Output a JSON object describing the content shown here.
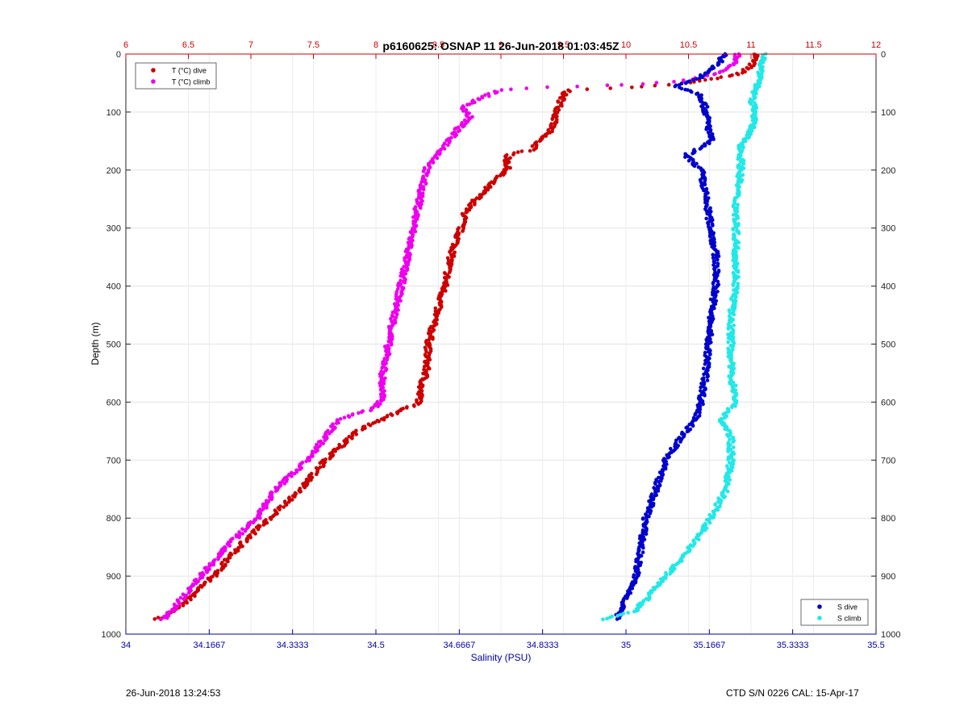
{
  "chart_data": {
    "type": "scatter",
    "title": "p6160625: OSNAP 11 26-Jun-2018 01:03:45Z",
    "ylabel": "Depth (m)",
    "xlabel_bottom": "Salinity (PSU)",
    "ylim": [
      0,
      1000
    ],
    "y_reversed": true,
    "y_ticks": [
      "0",
      "100",
      "200",
      "300",
      "400",
      "500",
      "600",
      "700",
      "800",
      "900",
      "1000"
    ],
    "x_top": {
      "range": [
        6,
        12
      ],
      "ticks": [
        "6",
        "6.5",
        "7",
        "7.5",
        "8",
        "8.5",
        "9",
        "9.5",
        "10",
        "10.5",
        "11",
        "11.5",
        "12"
      ],
      "color": "#cc0000"
    },
    "x_bottom": {
      "range": [
        34,
        35.5
      ],
      "ticks": [
        "34",
        "34.1667",
        "34.3333",
        "34.5",
        "34.6667",
        "34.8333",
        "35",
        "35.1667",
        "35.3333",
        "35.5"
      ],
      "color": "#0000aa"
    },
    "grid": true,
    "legend_top_left": [
      "T (°C) dive",
      "T (°C) climb"
    ],
    "legend_bottom_right": [
      "S dive",
      "S climb"
    ],
    "series": [
      {
        "name": "T (°C) dive",
        "axis": "top",
        "color": "#cc0000",
        "profile": [
          [
            0,
            11.05
          ],
          [
            20,
            11.0
          ],
          [
            35,
            10.9
          ],
          [
            50,
            10.5
          ],
          [
            58,
            10.0
          ],
          [
            62,
            9.55
          ],
          [
            70,
            9.5
          ],
          [
            100,
            9.45
          ],
          [
            130,
            9.4
          ],
          [
            150,
            9.3
          ],
          [
            165,
            9.25
          ],
          [
            175,
            9.05
          ],
          [
            200,
            9.05
          ],
          [
            215,
            8.95
          ],
          [
            240,
            8.85
          ],
          [
            270,
            8.72
          ],
          [
            300,
            8.68
          ],
          [
            350,
            8.6
          ],
          [
            400,
            8.55
          ],
          [
            450,
            8.48
          ],
          [
            500,
            8.42
          ],
          [
            550,
            8.4
          ],
          [
            580,
            8.35
          ],
          [
            600,
            8.35
          ],
          [
            620,
            8.15
          ],
          [
            650,
            7.85
          ],
          [
            700,
            7.6
          ],
          [
            750,
            7.4
          ],
          [
            800,
            7.15
          ],
          [
            850,
            6.9
          ],
          [
            900,
            6.7
          ],
          [
            950,
            6.45
          ],
          [
            975,
            6.25
          ]
        ]
      },
      {
        "name": "T (°C) climb",
        "axis": "top",
        "color": "#ee00ee",
        "profile": [
          [
            0,
            10.9
          ],
          [
            20,
            10.85
          ],
          [
            35,
            10.7
          ],
          [
            48,
            10.4
          ],
          [
            55,
            9.8
          ],
          [
            58,
            9.3
          ],
          [
            62,
            9.0
          ],
          [
            70,
            8.9
          ],
          [
            90,
            8.7
          ],
          [
            110,
            8.75
          ],
          [
            130,
            8.65
          ],
          [
            160,
            8.55
          ],
          [
            200,
            8.4
          ],
          [
            250,
            8.35
          ],
          [
            300,
            8.3
          ],
          [
            350,
            8.25
          ],
          [
            400,
            8.2
          ],
          [
            450,
            8.15
          ],
          [
            500,
            8.1
          ],
          [
            560,
            8.05
          ],
          [
            590,
            8.05
          ],
          [
            610,
            8.0
          ],
          [
            630,
            7.7
          ],
          [
            660,
            7.6
          ],
          [
            700,
            7.45
          ],
          [
            750,
            7.2
          ],
          [
            800,
            7.05
          ],
          [
            850,
            6.8
          ],
          [
            900,
            6.6
          ],
          [
            950,
            6.4
          ],
          [
            975,
            6.3
          ]
        ]
      },
      {
        "name": "S dive",
        "axis": "bottom",
        "color": "#0000cc",
        "profile": [
          [
            0,
            35.2
          ],
          [
            20,
            35.18
          ],
          [
            40,
            35.15
          ],
          [
            55,
            35.1
          ],
          [
            70,
            35.15
          ],
          [
            100,
            35.16
          ],
          [
            150,
            35.17
          ],
          [
            175,
            35.12
          ],
          [
            200,
            35.15
          ],
          [
            250,
            35.16
          ],
          [
            300,
            35.17
          ],
          [
            350,
            35.18
          ],
          [
            400,
            35.18
          ],
          [
            450,
            35.17
          ],
          [
            500,
            35.165
          ],
          [
            550,
            35.16
          ],
          [
            600,
            35.15
          ],
          [
            630,
            35.14
          ],
          [
            660,
            35.11
          ],
          [
            700,
            35.08
          ],
          [
            750,
            35.06
          ],
          [
            800,
            35.04
          ],
          [
            850,
            35.03
          ],
          [
            900,
            35.02
          ],
          [
            940,
            35.0
          ],
          [
            975,
            34.98
          ]
        ]
      },
      {
        "name": "S climb",
        "axis": "bottom",
        "color": "#22e8e8",
        "profile": [
          [
            0,
            35.28
          ],
          [
            20,
            35.27
          ],
          [
            40,
            35.27
          ],
          [
            60,
            35.26
          ],
          [
            80,
            35.25
          ],
          [
            100,
            35.26
          ],
          [
            130,
            35.25
          ],
          [
            160,
            35.23
          ],
          [
            200,
            35.23
          ],
          [
            250,
            35.22
          ],
          [
            300,
            35.22
          ],
          [
            350,
            35.22
          ],
          [
            400,
            35.22
          ],
          [
            450,
            35.21
          ],
          [
            500,
            35.21
          ],
          [
            550,
            35.21
          ],
          [
            600,
            35.22
          ],
          [
            630,
            35.19
          ],
          [
            660,
            35.21
          ],
          [
            700,
            35.21
          ],
          [
            750,
            35.2
          ],
          [
            800,
            35.17
          ],
          [
            850,
            35.13
          ],
          [
            880,
            35.1
          ],
          [
            900,
            35.08
          ],
          [
            930,
            35.05
          ],
          [
            960,
            35.02
          ],
          [
            975,
            34.95
          ]
        ]
      }
    ]
  },
  "footer": {
    "datetime": "26-Jun-2018 13:24:53",
    "ctd": "CTD S/N 0226  CAL: 15-Apr-17"
  }
}
